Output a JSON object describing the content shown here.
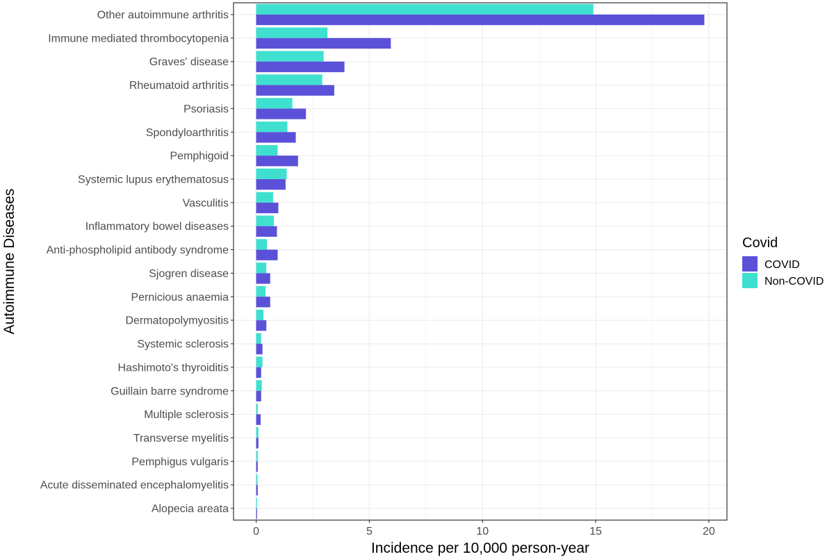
{
  "chart_data": {
    "type": "bar",
    "orientation": "horizontal",
    "xlabel": "Incidence per 10,000 person-year",
    "ylabel": "Autoimmune Diseases",
    "xlim": [
      -1.0,
      20.8
    ],
    "xticks": [
      0,
      5,
      10,
      15,
      20
    ],
    "grid": true,
    "legend": {
      "title": "Covid",
      "position": "right"
    },
    "categories": [
      "Other autoimmune arthritis",
      "Immune mediated thrombocytopenia",
      "Graves' disease",
      "Rheumatoid arthritis",
      "Psoriasis",
      "Spondyloarthritis",
      "Pemphigoid",
      "Systemic lupus erythematosus",
      "Vasculitis",
      "Inflammatory bowel diseases",
      "Anti-phospholipid antibody syndrome",
      "Sjogren disease",
      "Pernicious anaemia",
      "Dermatopolymyositis",
      "Systemic sclerosis",
      "Hashimoto's thyroiditis",
      "Guillain barre syndrome",
      "Multiple sclerosis",
      "Transverse myelitis",
      "Pemphigus vulgaris",
      "Acute disseminated encephalomyelitis",
      "Alopecia areata"
    ],
    "series": [
      {
        "name": "COVID",
        "color": "#5b51d8",
        "values": [
          19.8,
          5.95,
          3.9,
          3.45,
          2.2,
          1.75,
          1.85,
          1.3,
          0.98,
          0.92,
          0.95,
          0.62,
          0.62,
          0.45,
          0.28,
          0.22,
          0.22,
          0.2,
          0.1,
          0.07,
          0.07,
          0.04
        ]
      },
      {
        "name": "Non-COVID",
        "color": "#40e0d0",
        "values": [
          14.9,
          3.15,
          2.98,
          2.92,
          1.6,
          1.38,
          0.95,
          1.35,
          0.75,
          0.78,
          0.48,
          0.45,
          0.42,
          0.32,
          0.22,
          0.28,
          0.25,
          0.07,
          0.1,
          0.07,
          0.06,
          0.04
        ]
      }
    ]
  }
}
